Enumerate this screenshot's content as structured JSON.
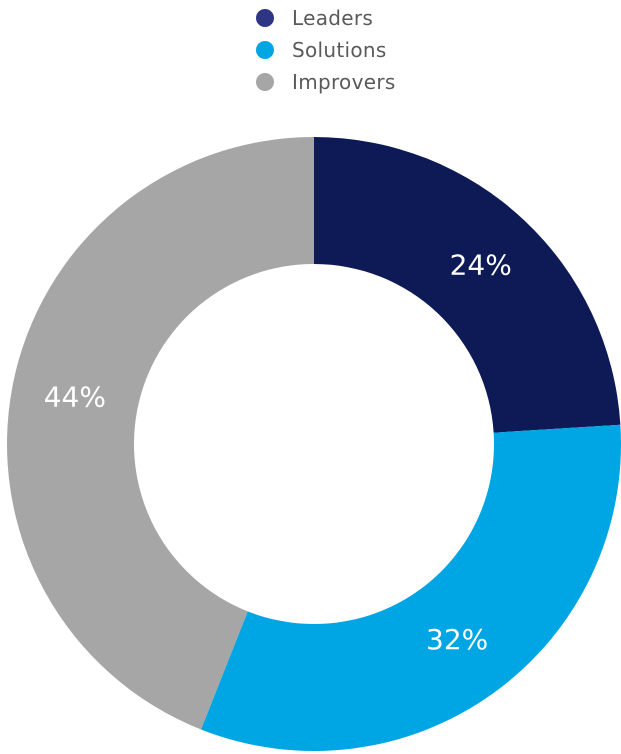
{
  "chart_data": {
    "type": "pie",
    "variant": "donut",
    "title": "",
    "legend_position": "top-center",
    "categories": [
      "Leaders",
      "Solutions",
      "Improvers"
    ],
    "values": [
      24,
      32,
      44
    ],
    "labels": [
      "24%",
      "32%",
      "44%"
    ],
    "colors": [
      "#0d1a55",
      "#00a5e3",
      "#a6a6a6"
    ]
  }
}
